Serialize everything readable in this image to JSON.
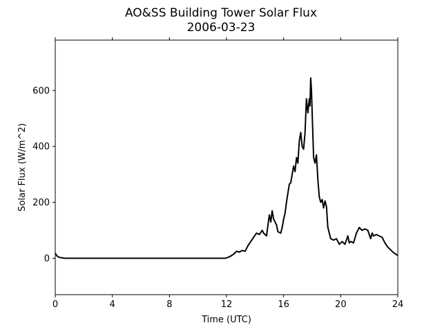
{
  "chart_data": {
    "type": "line",
    "title": "AO&SS Building Tower Solar Flux",
    "subtitle": "2006-03-23",
    "xlabel": "Time (UTC)",
    "ylabel": "Solar Flux (W/m^2)",
    "xlim": [
      0,
      24
    ],
    "ylim": [
      -130,
      780
    ],
    "xticks": [
      0,
      4,
      8,
      12,
      16,
      20,
      24
    ],
    "yticks": [
      0,
      200,
      400,
      600
    ],
    "grid": false,
    "line_color": "#000000",
    "series": [
      {
        "x": [
          0,
          0.1,
          0.2,
          0.4,
          0.7,
          1,
          2,
          4,
          6,
          8,
          10,
          11.9,
          12.1,
          12.3,
          12.5,
          12.7,
          12.9,
          13.1,
          13.3,
          13.5,
          13.7,
          13.9,
          14.1,
          14.3,
          14.5,
          14.6,
          14.8,
          15.0,
          15.1,
          15.2,
          15.3,
          15.5,
          15.6,
          15.8,
          15.9,
          16.0,
          16.1,
          16.2,
          16.4,
          16.5,
          16.7,
          16.8,
          16.9,
          17.0,
          17.1,
          17.2,
          17.3,
          17.4,
          17.5,
          17.6,
          17.7,
          17.8,
          17.85,
          17.9,
          17.95,
          18.0,
          18.1,
          18.2,
          18.3,
          18.4,
          18.5,
          18.6,
          18.7,
          18.8,
          18.9,
          19.0,
          19.1,
          19.3,
          19.5,
          19.7,
          19.9,
          20.1,
          20.3,
          20.5,
          20.6,
          20.7,
          20.9,
          21.1,
          21.3,
          21.5,
          21.7,
          21.9,
          22.1,
          22.2,
          22.3,
          22.5,
          22.7,
          22.9,
          23.1,
          23.3,
          23.5,
          23.7,
          24
        ],
        "y": [
          18,
          10,
          5,
          2,
          0,
          0,
          0,
          0,
          0,
          0,
          0,
          0,
          3,
          8,
          15,
          25,
          22,
          28,
          25,
          45,
          60,
          75,
          90,
          85,
          100,
          90,
          80,
          155,
          130,
          170,
          140,
          120,
          95,
          90,
          110,
          140,
          160,
          200,
          265,
          270,
          330,
          310,
          360,
          340,
          420,
          450,
          400,
          390,
          450,
          570,
          520,
          570,
          545,
          645,
          600,
          520,
          360,
          340,
          370,
          280,
          220,
          200,
          210,
          180,
          205,
          185,
          110,
          70,
          65,
          70,
          50,
          60,
          50,
          80,
          55,
          60,
          55,
          90,
          110,
          100,
          105,
          100,
          70,
          90,
          80,
          85,
          80,
          75,
          55,
          40,
          30,
          20,
          10
        ]
      }
    ]
  }
}
